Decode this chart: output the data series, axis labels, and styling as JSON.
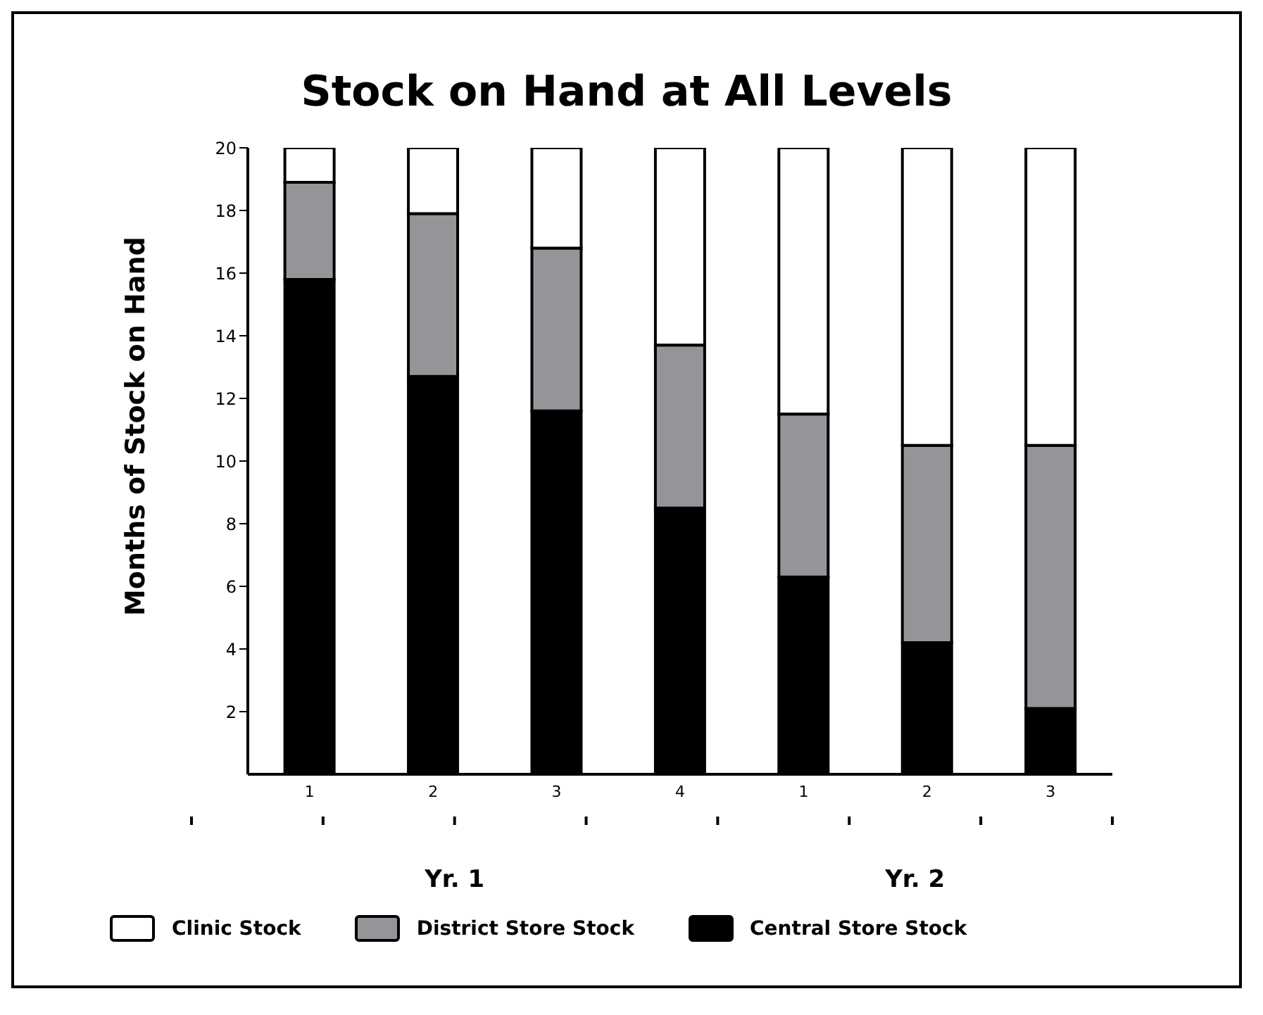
{
  "chart_data": {
    "type": "bar",
    "title": "Stock on Hand at All Levels",
    "ylabel": "Months of Stock on Hand",
    "categories": [
      "1",
      "2",
      "3",
      "4",
      "1",
      "2",
      "3"
    ],
    "stacked": true,
    "series": [
      {
        "name": "Central Store Stock",
        "color": "#000000",
        "values": [
          15.8,
          12.7,
          11.6,
          8.5,
          6.3,
          4.2,
          2.1
        ]
      },
      {
        "name": "District Store Stock",
        "color": "#939598",
        "values": [
          3.1,
          5.2,
          5.2,
          5.2,
          5.2,
          6.3,
          8.4
        ]
      },
      {
        "name": "Clinic Stock",
        "color": "#ffffff",
        "values": [
          1.1,
          2.1,
          3.2,
          6.3,
          8.5,
          9.5,
          9.5
        ]
      }
    ],
    "ylim": [
      0,
      20
    ],
    "yticks": [
      2,
      4,
      6,
      8,
      10,
      12,
      14,
      16,
      18,
      20
    ],
    "grid": false,
    "legend": "bottom",
    "annotations": [
      "Yr. 1",
      "Yr. 2"
    ]
  }
}
